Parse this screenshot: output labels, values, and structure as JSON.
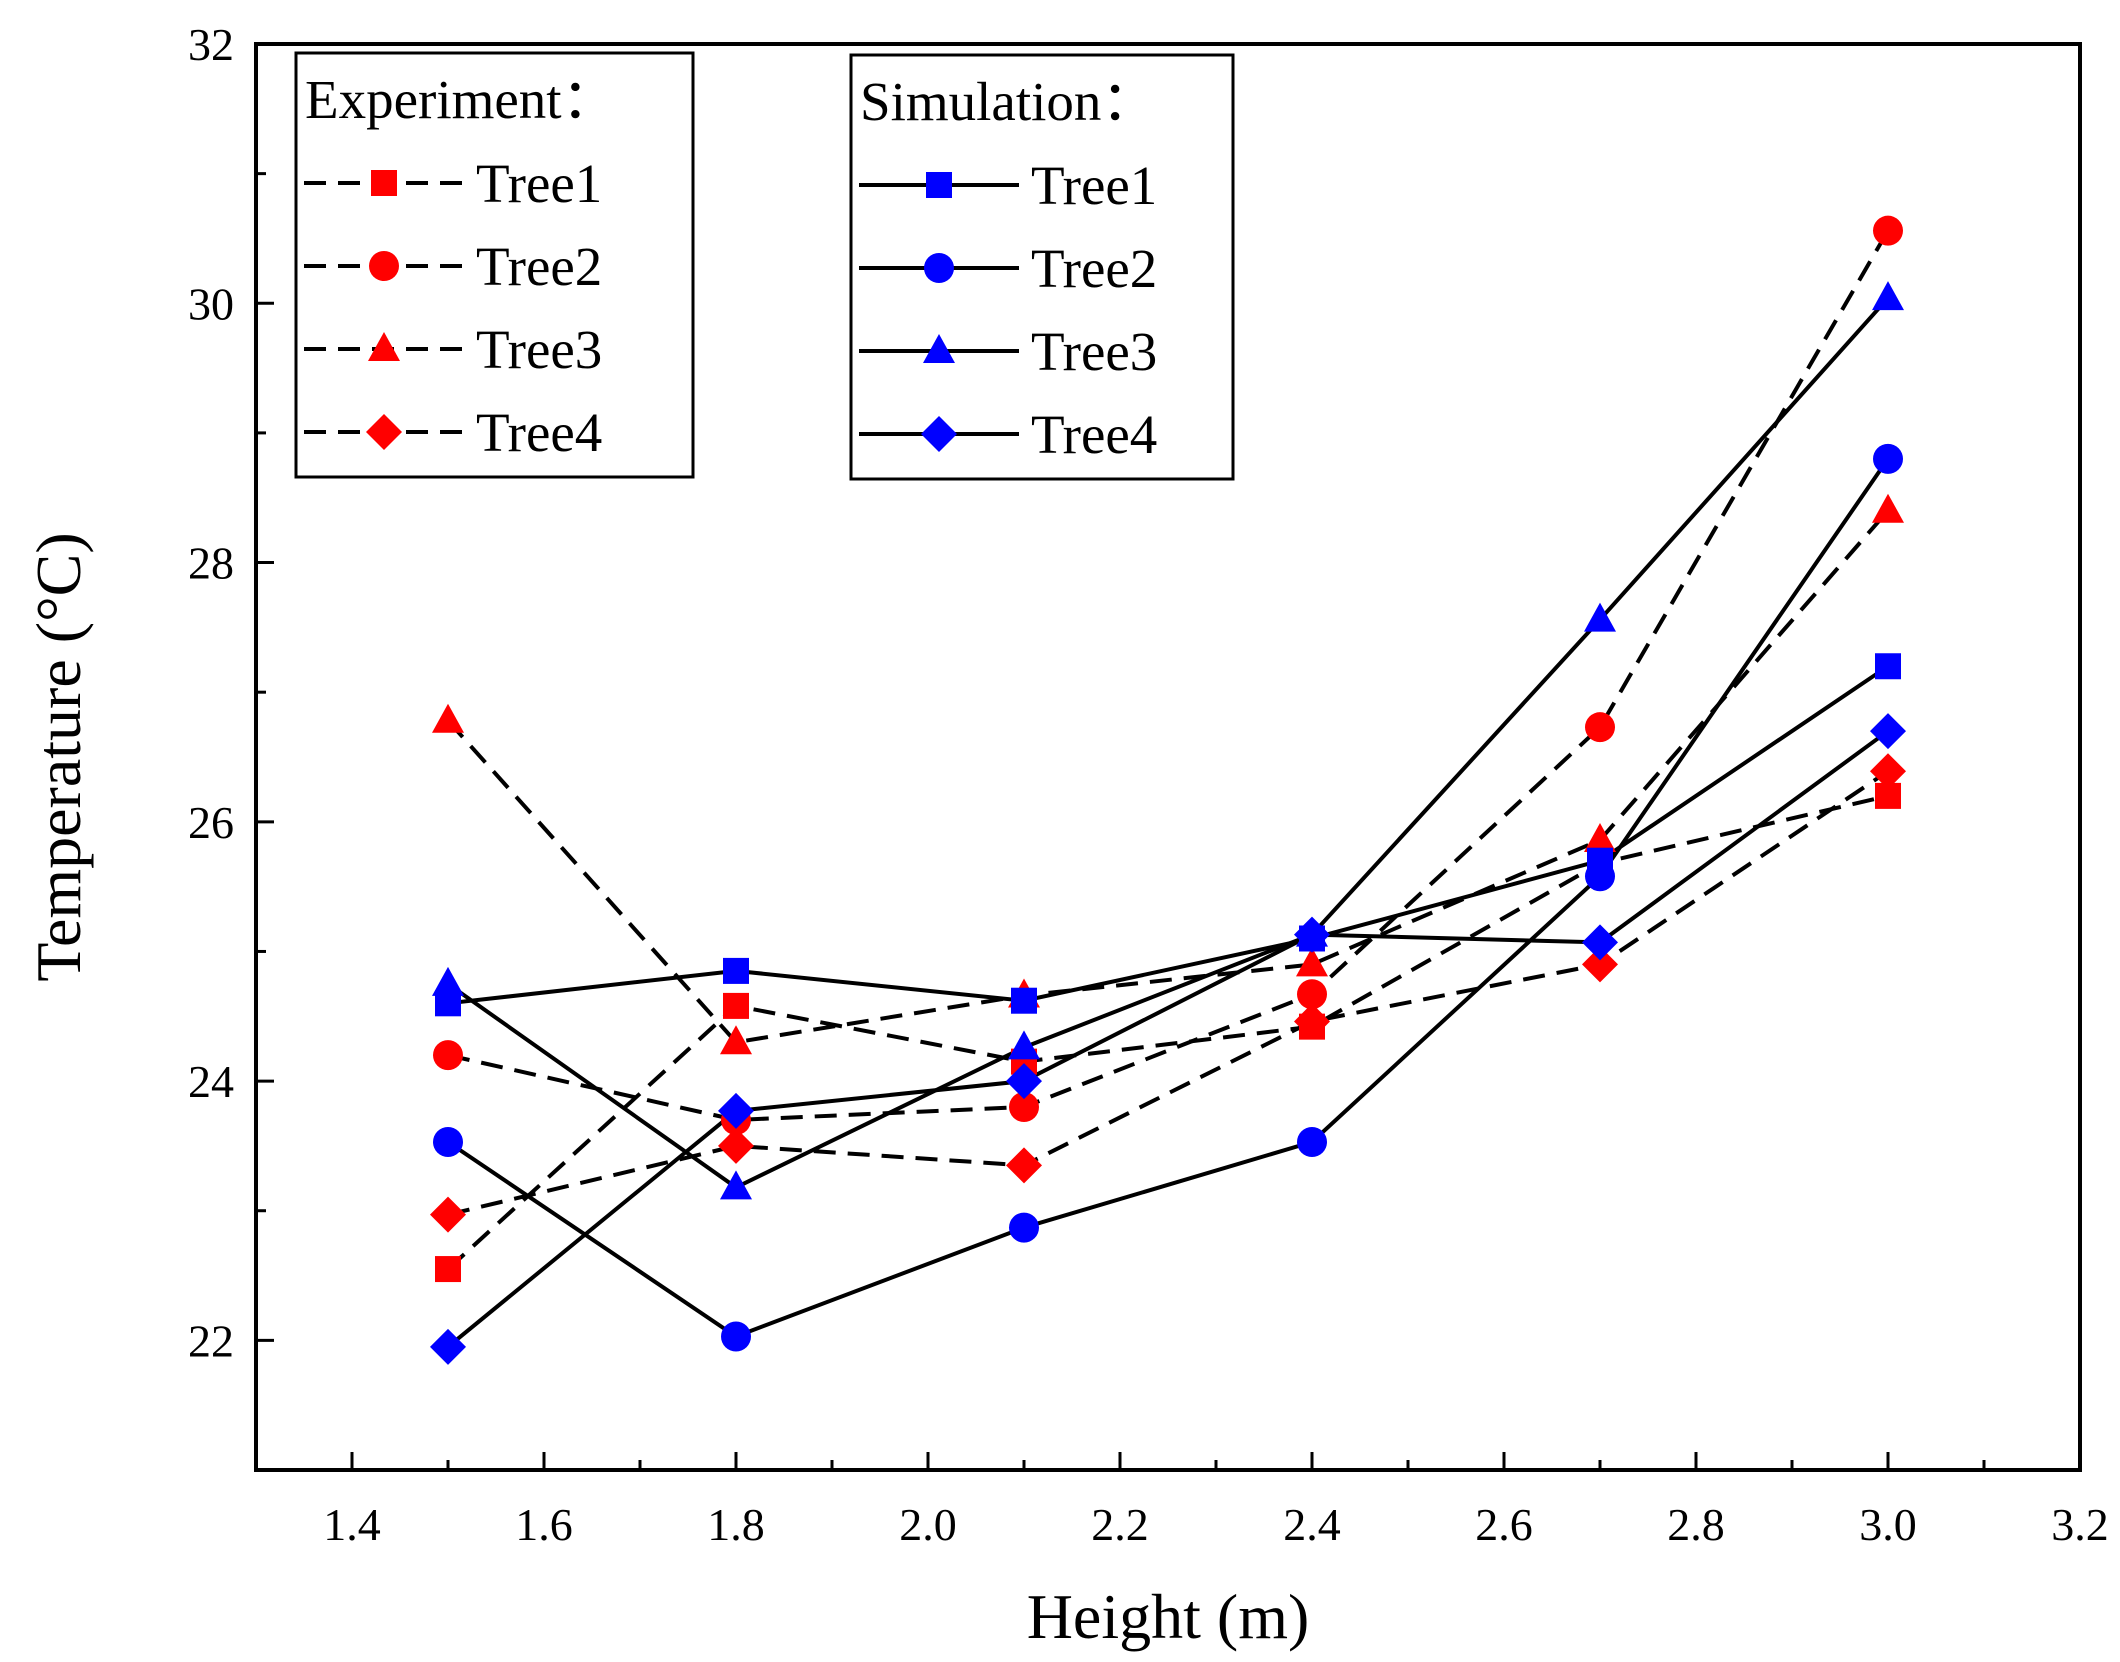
{
  "chart_data": {
    "type": "line",
    "title": "",
    "xlabel": "Height (m)",
    "ylabel": "Temperature (°C)",
    "xlim": [
      1.3,
      3.2
    ],
    "ylim": [
      21,
      32
    ],
    "xticks": [
      1.4,
      1.6,
      1.8,
      2.0,
      2.2,
      2.4,
      2.6,
      2.8,
      3.0,
      3.2
    ],
    "xtick_labels": [
      "1.4",
      "1.6",
      "1.8",
      "2.0",
      "2.2",
      "2.4",
      "2.6",
      "2.8",
      "3.0",
      "3.2"
    ],
    "yticks": [
      22,
      24,
      26,
      28,
      30,
      32
    ],
    "ytick_labels": [
      "22",
      "24",
      "26",
      "28",
      "30",
      "32"
    ],
    "x": [
      1.5,
      1.8,
      2.1,
      2.4,
      2.7,
      3.0
    ],
    "legends": [
      {
        "title": "Experiment：",
        "group": "experiment"
      },
      {
        "title": "Simulation：",
        "group": "simulation"
      }
    ],
    "series": [
      {
        "name": "Tree1",
        "group": "experiment",
        "marker": "square",
        "color": "#ff0000",
        "line": "dashed",
        "values": [
          22.55,
          24.58,
          24.15,
          24.42,
          25.68,
          26.2
        ]
      },
      {
        "name": "Tree2",
        "group": "experiment",
        "marker": "circle",
        "color": "#ff0000",
        "line": "dashed",
        "values": [
          24.2,
          23.7,
          23.8,
          24.67,
          26.73,
          30.56
        ]
      },
      {
        "name": "Tree3",
        "group": "experiment",
        "marker": "triangle",
        "color": "#ff0000",
        "line": "dashed",
        "values": [
          26.78,
          24.3,
          24.66,
          24.9,
          25.86,
          28.4
        ]
      },
      {
        "name": "Tree4",
        "group": "experiment",
        "marker": "diamond",
        "color": "#ff0000",
        "line": "dashed",
        "values": [
          22.97,
          23.5,
          23.35,
          24.46,
          24.9,
          26.39
        ]
      },
      {
        "name": "Tree1",
        "group": "simulation",
        "marker": "square",
        "color": "#0000ff",
        "line": "solid",
        "values": [
          24.6,
          24.85,
          24.62,
          25.1,
          25.7,
          27.2
        ]
      },
      {
        "name": "Tree2",
        "group": "simulation",
        "marker": "circle",
        "color": "#0000ff",
        "line": "solid",
        "values": [
          23.53,
          22.03,
          22.87,
          23.53,
          25.58,
          28.8
        ]
      },
      {
        "name": "Tree3",
        "group": "simulation",
        "marker": "triangle",
        "color": "#0000ff",
        "line": "solid",
        "values": [
          24.75,
          23.18,
          24.26,
          25.13,
          27.56,
          30.04
        ]
      },
      {
        "name": "Tree4",
        "group": "simulation",
        "marker": "diamond",
        "color": "#0000ff",
        "line": "solid",
        "values": [
          21.95,
          23.77,
          24.0,
          25.13,
          25.07,
          26.7
        ]
      }
    ]
  }
}
